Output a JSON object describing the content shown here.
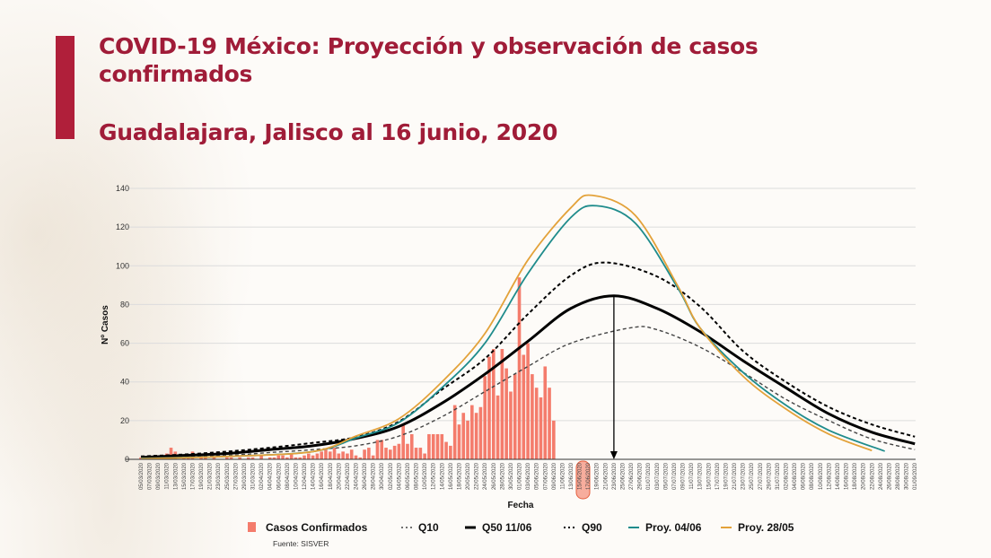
{
  "header": {
    "title": "COVID-19 México: Proyección y observación de casos confirmados",
    "title_line1": "COVID-19 México: Proyección y observación de casos",
    "title_line2": "confirmados",
    "subtitle": "Guadalajara, Jalisco al 16 junio, 2020",
    "accent_color": "#a01c38"
  },
  "chart_data": {
    "type": "bar+line",
    "xlabel": "Fecha",
    "ylabel": "Nº Casos",
    "ylim": [
      0,
      140
    ],
    "yticks": [
      "0",
      "20",
      "40",
      "60",
      "80",
      "100",
      "120",
      "140"
    ],
    "grid": "horizontal",
    "legend_position": "bottom",
    "source": "Fuente: SISVER",
    "highlighted_ticks": [
      "15/06/2020",
      "17/06/2020"
    ],
    "peak_marker_date": "23/06/2020",
    "xticks": [
      "05/03/2020",
      "07/03/2020",
      "09/03/2020",
      "11/03/2020",
      "13/03/2020",
      "15/03/2020",
      "17/03/2020",
      "19/03/2020",
      "21/03/2020",
      "23/03/2020",
      "25/03/2020",
      "27/03/2020",
      "29/03/2020",
      "31/03/2020",
      "02/04/2020",
      "04/04/2020",
      "06/04/2020",
      "08/04/2020",
      "10/04/2020",
      "12/04/2020",
      "14/04/2020",
      "16/04/2020",
      "18/04/2020",
      "20/04/2020",
      "22/04/2020",
      "24/04/2020",
      "26/04/2020",
      "28/04/2020",
      "30/04/2020",
      "02/05/2020",
      "04/05/2020",
      "06/05/2020",
      "08/05/2020",
      "10/05/2020",
      "12/05/2020",
      "14/05/2020",
      "16/05/2020",
      "18/05/2020",
      "20/05/2020",
      "22/05/2020",
      "24/05/2020",
      "26/05/2020",
      "28/05/2020",
      "30/05/2020",
      "01/06/2020",
      "03/06/2020",
      "05/06/2020",
      "07/06/2020",
      "09/06/2020",
      "11/06/2020",
      "13/06/2020",
      "15/06/2020",
      "17/06/2020",
      "19/06/2020",
      "21/06/2020",
      "23/06/2020",
      "25/06/2020",
      "27/06/2020",
      "29/06/2020",
      "01/07/2020",
      "03/07/2020",
      "05/07/2020",
      "07/07/2020",
      "09/07/2020",
      "11/07/2020",
      "13/07/2020",
      "15/07/2020",
      "17/07/2020",
      "19/07/2020",
      "21/07/2020",
      "23/07/2020",
      "25/07/2020",
      "27/07/2020",
      "29/07/2020",
      "31/07/2020",
      "02/08/2020",
      "04/08/2020",
      "06/08/2020",
      "08/08/2020",
      "10/08/2020",
      "12/08/2020",
      "14/08/2020",
      "16/08/2020",
      "18/08/2020",
      "20/08/2020",
      "22/08/2020",
      "24/08/2020",
      "26/08/2020",
      "28/08/2020",
      "30/08/2020",
      "01/09/2020"
    ],
    "bars": {
      "name": "Casos Confirmados",
      "color": "#f47c6c",
      "dates": [
        "05/03",
        "06/03",
        "07/03",
        "08/03",
        "09/03",
        "10/03",
        "11/03",
        "12/03",
        "13/03",
        "14/03",
        "15/03",
        "16/03",
        "17/03",
        "18/03",
        "19/03",
        "20/03",
        "21/03",
        "22/03",
        "23/03",
        "24/03",
        "25/03",
        "26/03",
        "27/03",
        "28/03",
        "29/03",
        "30/03",
        "31/03",
        "01/04",
        "02/04",
        "03/04",
        "04/04",
        "05/04",
        "06/04",
        "07/04",
        "08/04",
        "09/04",
        "10/04",
        "11/04",
        "12/04",
        "13/04",
        "14/04",
        "15/04",
        "16/04",
        "17/04",
        "18/04",
        "19/04",
        "20/04",
        "21/04",
        "22/04",
        "23/04",
        "24/04",
        "25/04",
        "26/04",
        "27/04",
        "28/04",
        "29/04",
        "30/04",
        "01/05",
        "02/05",
        "03/05",
        "04/05",
        "05/05",
        "06/05",
        "07/05",
        "08/05",
        "09/05",
        "10/05",
        "11/05",
        "12/05",
        "13/05",
        "14/05",
        "15/05",
        "16/05",
        "17/05",
        "18/05",
        "19/05",
        "20/05",
        "21/05",
        "22/05",
        "23/05",
        "24/05",
        "25/05",
        "26/05",
        "27/05",
        "28/05",
        "29/05",
        "30/05",
        "31/05",
        "01/06",
        "02/06",
        "03/06",
        "04/06",
        "05/06",
        "06/06",
        "07/06",
        "08/06",
        "09/06"
      ],
      "values": [
        1,
        0,
        1,
        1,
        2,
        2,
        3,
        6,
        4,
        0,
        1,
        2,
        4,
        0,
        2,
        1,
        0,
        1,
        0,
        0,
        1,
        1,
        0,
        1,
        0,
        1,
        1,
        0,
        2,
        0,
        1,
        1,
        2,
        2,
        1,
        3,
        1,
        1,
        2,
        3,
        2,
        3,
        4,
        5,
        4,
        6,
        3,
        4,
        3,
        5,
        2,
        1,
        5,
        6,
        2,
        10,
        10,
        6,
        5,
        7,
        8,
        18,
        8,
        13,
        6,
        6,
        3,
        13,
        13,
        13,
        13,
        9,
        7,
        28,
        18,
        24,
        20,
        28,
        24,
        27,
        43,
        53,
        57,
        33,
        57,
        47,
        35,
        44,
        94,
        54,
        60,
        44,
        37,
        32,
        48,
        37,
        20
      ]
    },
    "series": [
      {
        "name": "Q10",
        "color": "#444444",
        "style": "dashed",
        "points": [
          [
            "05/03",
            1
          ],
          [
            "15/03",
            1.5
          ],
          [
            "25/03",
            2
          ],
          [
            "04/04",
            3.5
          ],
          [
            "14/04",
            5
          ],
          [
            "24/04",
            7
          ],
          [
            "04/05",
            12
          ],
          [
            "14/05",
            22
          ],
          [
            "24/05",
            35
          ],
          [
            "03/06",
            48
          ],
          [
            "13/06",
            60
          ],
          [
            "27/06",
            68
          ],
          [
            "03/07",
            67
          ],
          [
            "13/07",
            58
          ],
          [
            "23/07",
            45
          ],
          [
            "02/08",
            31
          ],
          [
            "12/08",
            20
          ],
          [
            "22/08",
            10.5
          ],
          [
            "01/09",
            5
          ]
        ]
      },
      {
        "name": "Q50 11/06",
        "color": "#000000",
        "style": "solid",
        "points": [
          [
            "05/03",
            1
          ],
          [
            "15/03",
            2
          ],
          [
            "25/03",
            3
          ],
          [
            "04/04",
            5
          ],
          [
            "14/04",
            7
          ],
          [
            "24/04",
            10.8
          ],
          [
            "04/05",
            17
          ],
          [
            "14/05",
            29
          ],
          [
            "24/05",
            44
          ],
          [
            "03/06",
            61
          ],
          [
            "13/06",
            78
          ],
          [
            "23/06",
            84.5
          ],
          [
            "03/07",
            78
          ],
          [
            "13/07",
            66
          ],
          [
            "23/07",
            51
          ],
          [
            "02/08",
            37
          ],
          [
            "12/08",
            23.5
          ],
          [
            "22/08",
            14
          ],
          [
            "01/09",
            8
          ]
        ]
      },
      {
        "name": "Q90",
        "color": "#000000",
        "style": "dotted",
        "points": [
          [
            "05/03",
            1.5
          ],
          [
            "15/03",
            2.5
          ],
          [
            "25/03",
            4
          ],
          [
            "04/04",
            6
          ],
          [
            "14/04",
            8.5
          ],
          [
            "24/04",
            11.5
          ],
          [
            "04/05",
            19.5
          ],
          [
            "14/05",
            36
          ],
          [
            "24/05",
            52
          ],
          [
            "03/06",
            75
          ],
          [
            "13/06",
            95
          ],
          [
            "21/06",
            101.7
          ],
          [
            "03/07",
            94.5
          ],
          [
            "13/07",
            79
          ],
          [
            "23/07",
            56
          ],
          [
            "02/08",
            40
          ],
          [
            "12/08",
            27
          ],
          [
            "22/08",
            18
          ],
          [
            "01/09",
            11.7
          ]
        ]
      },
      {
        "name": "Proy. 04/06",
        "color": "#1f8c8c",
        "style": "solid",
        "points": [
          [
            "05/03",
            0.5
          ],
          [
            "25/03",
            1.5
          ],
          [
            "14/04",
            4
          ],
          [
            "24/04",
            11
          ],
          [
            "04/05",
            19
          ],
          [
            "14/05",
            37
          ],
          [
            "24/05",
            60
          ],
          [
            "03/06",
            96
          ],
          [
            "13/06",
            125
          ],
          [
            "19/06",
            131
          ],
          [
            "28/06",
            122
          ],
          [
            "08/07",
            88
          ],
          [
            "13/07",
            68
          ],
          [
            "23/07",
            45
          ],
          [
            "02/08",
            28
          ],
          [
            "12/08",
            15
          ],
          [
            "25/08",
            4.2
          ]
        ]
      },
      {
        "name": "Proy. 28/05",
        "color": "#e3a23a",
        "style": "solid",
        "points": [
          [
            "05/03",
            0.3
          ],
          [
            "25/03",
            1.5
          ],
          [
            "14/04",
            4
          ],
          [
            "24/04",
            12
          ],
          [
            "04/05",
            21
          ],
          [
            "14/05",
            40
          ],
          [
            "24/05",
            65
          ],
          [
            "03/06",
            103
          ],
          [
            "13/06",
            130
          ],
          [
            "18/06",
            136.4
          ],
          [
            "28/06",
            126
          ],
          [
            "08/07",
            89
          ],
          [
            "13/07",
            68
          ],
          [
            "23/07",
            43
          ],
          [
            "02/08",
            26
          ],
          [
            "12/08",
            13
          ],
          [
            "22/08",
            4.5
          ]
        ]
      }
    ]
  },
  "legend": {
    "items": [
      "Casos Confirmados",
      "Q10",
      "Q50 11/06",
      "Q90",
      "Proy. 04/06",
      "Proy. 28/05"
    ],
    "source": "Fuente: SISVER"
  }
}
